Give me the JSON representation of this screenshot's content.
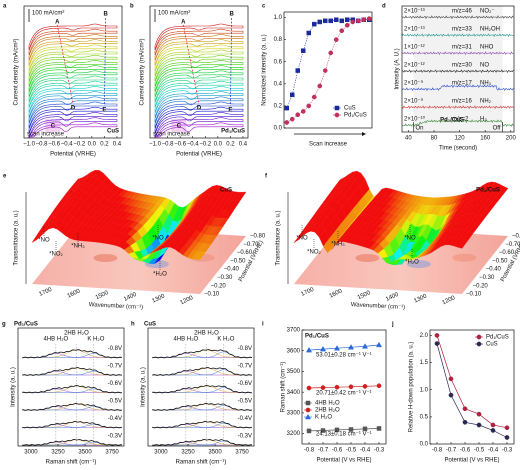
{
  "chart_data": [
    {
      "type": "line",
      "panel": "a",
      "title": "CuS",
      "xlabel": "Potential (VRHE)",
      "ylabel": "Current density (mA/cm²)",
      "xlim": [
        -1.08,
        0.48
      ],
      "xticks": [
        {
          "value": -1,
          "label": "−1.0"
        },
        {
          "value": -0.8,
          "label": "−0.8"
        },
        {
          "value": -0.6,
          "label": "−0.6"
        },
        {
          "value": -0.4,
          "label": "−0.4"
        },
        {
          "value": -0.2,
          "label": "−0.2"
        },
        {
          "value": 0,
          "label": "0.0"
        },
        {
          "value": 0.2,
          "label": "0.2"
        },
        {
          "value": 0.4,
          "label": "0.4"
        }
      ],
      "annotations": [
        "100 mA/cm²",
        "A",
        "B",
        "C",
        "D",
        "E",
        "scan increase"
      ]
    },
    {
      "type": "line",
      "panel": "b",
      "title": "Pd₁/CuS",
      "xlabel": "Potential (VRHE)",
      "ylabel": "Current density (mA/cm²)",
      "xlim": [
        -1.08,
        0.48
      ],
      "xticks": [
        {
          "value": -1,
          "label": "−1.0"
        },
        {
          "value": -0.8,
          "label": "−0.8"
        },
        {
          "value": -0.6,
          "label": "−0.6"
        },
        {
          "value": -0.4,
          "label": "−0.4"
        },
        {
          "value": -0.2,
          "label": "−0.2"
        },
        {
          "value": 0,
          "label": "0.0"
        },
        {
          "value": 0.2,
          "label": "0.2"
        },
        {
          "value": 0.4,
          "label": "0.4"
        }
      ],
      "annotations": [
        "100 mA/cm²",
        "A",
        "B",
        "C",
        "D",
        "E",
        "scan increase"
      ]
    },
    {
      "type": "scatter",
      "panel": "c",
      "xlabel": "Scan increase",
      "ylabel": "Normalized intensity (a. u.)",
      "ylim": [
        0,
        1.05
      ],
      "yticks": [
        {
          "value": 0,
          "label": "0.0"
        },
        {
          "value": 0.2,
          "label": "0.2"
        },
        {
          "value": 0.4,
          "label": "0.4"
        },
        {
          "value": 0.6,
          "label": "0.6"
        },
        {
          "value": 0.8,
          "label": "0.8"
        },
        {
          "value": 1,
          "label": "1.0"
        }
      ],
      "legend": "lower right",
      "series": [
        {
          "name": "CuS",
          "color": "#1a2a9a",
          "marker": "square",
          "values": [
            0.18,
            0.3,
            0.52,
            0.7,
            0.86,
            0.94,
            0.96,
            0.97,
            0.97,
            0.98,
            0.97,
            0.98,
            0.98,
            0.97,
            0.98,
            0.98
          ]
        },
        {
          "name": "Pd₁/CuS",
          "color": "#c0305a",
          "marker": "circle",
          "values": [
            0.05,
            0.08,
            0.12,
            0.15,
            0.2,
            0.28,
            0.38,
            0.52,
            0.68,
            0.8,
            0.88,
            0.93,
            0.96,
            0.97,
            0.98,
            0.99
          ]
        }
      ]
    },
    {
      "type": "line",
      "panel": "d",
      "title": "Pd₁/CuS",
      "xlabel": "Time (second)",
      "ylabel": "Intensity (A. U.)",
      "xlim": [
        30,
        205
      ],
      "xticks": [
        40,
        80,
        120,
        160,
        200
      ],
      "traces": [
        {
          "mz": "m/z=46",
          "species": "NO₂⁻",
          "scale": "2×10⁻¹³",
          "color": "#444444"
        },
        {
          "mz": "m/z=33",
          "species": "NH₂OH",
          "scale": "2×10⁻¹³",
          "color": "#1a9a8a"
        },
        {
          "mz": "m/z=31",
          "species": "NHO",
          "scale": "1×10⁻¹²",
          "color": "#8a4ab0"
        },
        {
          "mz": "m/z=30",
          "species": "NO",
          "scale": "2×10⁻¹²",
          "color": "#222222"
        },
        {
          "mz": "m/z=17",
          "species": "NH₃",
          "scale": "2×10⁻⁹",
          "color": "#2a4ad0"
        },
        {
          "mz": "m/z=16",
          "species": "NH₂",
          "scale": "2×10⁻⁹",
          "color": "#d03030"
        },
        {
          "mz": "m/z=2",
          "species": "H₂",
          "scale": "2×10⁻¹⁰",
          "color": "#3a8a3a"
        }
      ],
      "annotations": [
        "On",
        "Off"
      ]
    },
    {
      "type": "surface",
      "panel": "e",
      "title": "CuS",
      "xlabel": "Wavenumber (cm⁻¹)",
      "ylabel": "Transmittance (a. u.)",
      "zlabel": "Potential (VRHE)",
      "xticks": [
        1700,
        1600,
        1500,
        1400,
        1300,
        1200
      ],
      "zticks": [
        {
          "value": -0.8,
          "label": "−0.80"
        },
        {
          "value": -0.7,
          "label": "−0.70"
        },
        {
          "value": -0.6,
          "label": "−0.60"
        },
        {
          "value": -0.5,
          "label": "−0.50"
        },
        {
          "value": -0.4,
          "label": "−0.40"
        },
        {
          "value": -0.3,
          "label": "−0.30"
        },
        {
          "value": -0.2,
          "label": "−0.20"
        },
        {
          "value": -0.1,
          "label": "−0.10"
        }
      ],
      "annotations": [
        "*NO",
        "*NO₂",
        "*NH₃",
        "*NO",
        "*H₂O"
      ]
    },
    {
      "type": "surface",
      "panel": "f",
      "title": "Pd₁/CuS",
      "xlabel": "Wavenumber (cm⁻¹)",
      "ylabel": "Transmittance (a. u.)",
      "zlabel": "Potential (VRHE)",
      "xticks": [
        1700,
        1600,
        1500,
        1400,
        1300,
        1200
      ],
      "zticks": [
        {
          "value": -0.8,
          "label": "−0.80"
        },
        {
          "value": -0.7,
          "label": "−0.70"
        },
        {
          "value": -0.6,
          "label": "−0.60"
        },
        {
          "value": -0.5,
          "label": "−0.50"
        },
        {
          "value": -0.4,
          "label": "−0.40"
        },
        {
          "value": -0.3,
          "label": "−0.30"
        },
        {
          "value": -0.2,
          "label": "−0.20"
        },
        {
          "value": -0.1,
          "label": "−0.10"
        }
      ],
      "annotations": [
        "*NO",
        "*NO₂",
        "*NH₃",
        "*NO",
        "*H₂O"
      ]
    },
    {
      "type": "line",
      "panel": "g",
      "title": "Pd₁/CuS",
      "xlabel": "Raman shift (cm⁻¹)",
      "ylabel": "Intensity (a. u.)",
      "xlim": [
        2880,
        3860
      ],
      "xticks": [
        3000,
        3250,
        3500,
        3750
      ],
      "annotations": [
        "4HB H₂O",
        "2HB H₂O",
        "K H₂O"
      ],
      "potentials": [
        "-0.8V",
        "-0.7V",
        "-0.6V",
        "-0.5V",
        "-0.4V",
        "-0.3V"
      ]
    },
    {
      "type": "line",
      "panel": "h",
      "title": "CuS",
      "xlabel": "Raman shift (cm⁻¹)",
      "ylabel": "Intensity (a. u.)",
      "xlim": [
        2880,
        3860
      ],
      "xticks": [
        3000,
        3250,
        3500,
        3750
      ],
      "annotations": [
        "4HB H₂O",
        "2HB H₂O",
        "K H₂O"
      ],
      "potentials": [
        "-0.8V",
        "-0.7V",
        "-0.6V",
        "-0.5V",
        "-0.4V",
        "-0.3V"
      ]
    },
    {
      "type": "scatter",
      "panel": "i",
      "title": "Pd₁/CuS",
      "xlabel": "Potential (V vs RHE)",
      "ylabel": "Raman shift (cm⁻¹)",
      "x": [
        -0.8,
        -0.7,
        -0.6,
        -0.5,
        -0.4,
        -0.3
      ],
      "xlim": [
        -0.85,
        -0.25
      ],
      "ylim": [
        3150,
        3700
      ],
      "xticks": [
        -0.8,
        -0.7,
        -0.6,
        -0.5,
        -0.4,
        -0.3
      ],
      "yticks": [
        3200,
        3300,
        3400,
        3500,
        3600,
        3700
      ],
      "legend": "lower left",
      "series": [
        {
          "name": "4HB H₂O",
          "color": "#555555",
          "marker": "square",
          "values": [
            3213,
            3215,
            3218,
            3220,
            3223,
            3225
          ]
        },
        {
          "name": "2HB H₂O",
          "color": "#d02020",
          "marker": "circle",
          "values": [
            3420,
            3422,
            3424,
            3426,
            3428,
            3431
          ]
        },
        {
          "name": "K H₂O",
          "color": "#2a6ad8",
          "marker": "triangle",
          "values": [
            3603,
            3608,
            3612,
            3617,
            3621,
            3628
          ]
        }
      ],
      "annotations": [
        "53.01±0.28 cm⁻¹ V⁻¹",
        "20.71±0.42 cm⁻¹ V⁻¹",
        "24.13±0.18 cm⁻¹ V⁻¹"
      ]
    },
    {
      "type": "line",
      "panel": "j",
      "xlabel": "Potential (V vs RHE)",
      "ylabel": "Relative H-down population (a. u.)",
      "x": [
        -0.8,
        -0.7,
        -0.6,
        -0.5,
        -0.4,
        -0.3
      ],
      "xlim": [
        -0.85,
        -0.25
      ],
      "ylim": [
        0,
        2.1
      ],
      "xticks": [
        -0.8,
        -0.7,
        -0.6,
        -0.5,
        -0.4,
        -0.3
      ],
      "yticks": [
        {
          "value": 0,
          "label": "0.0"
        },
        {
          "value": 0.5,
          "label": "0.5"
        },
        {
          "value": 1,
          "label": "1.0"
        },
        {
          "value": 1.5,
          "label": "1.5"
        },
        {
          "value": 2,
          "label": "2.0"
        }
      ],
      "legend": "upper right",
      "series": [
        {
          "name": "Pd₁/CuS",
          "color": "#b02040",
          "marker": "circle",
          "values": [
            2.0,
            1.2,
            0.65,
            0.55,
            0.35,
            0.3
          ]
        },
        {
          "name": "CuS",
          "color": "#2a2a50",
          "marker": "circle",
          "values": [
            1.85,
            0.9,
            0.4,
            0.35,
            0.25,
            0.12
          ]
        }
      ]
    }
  ]
}
